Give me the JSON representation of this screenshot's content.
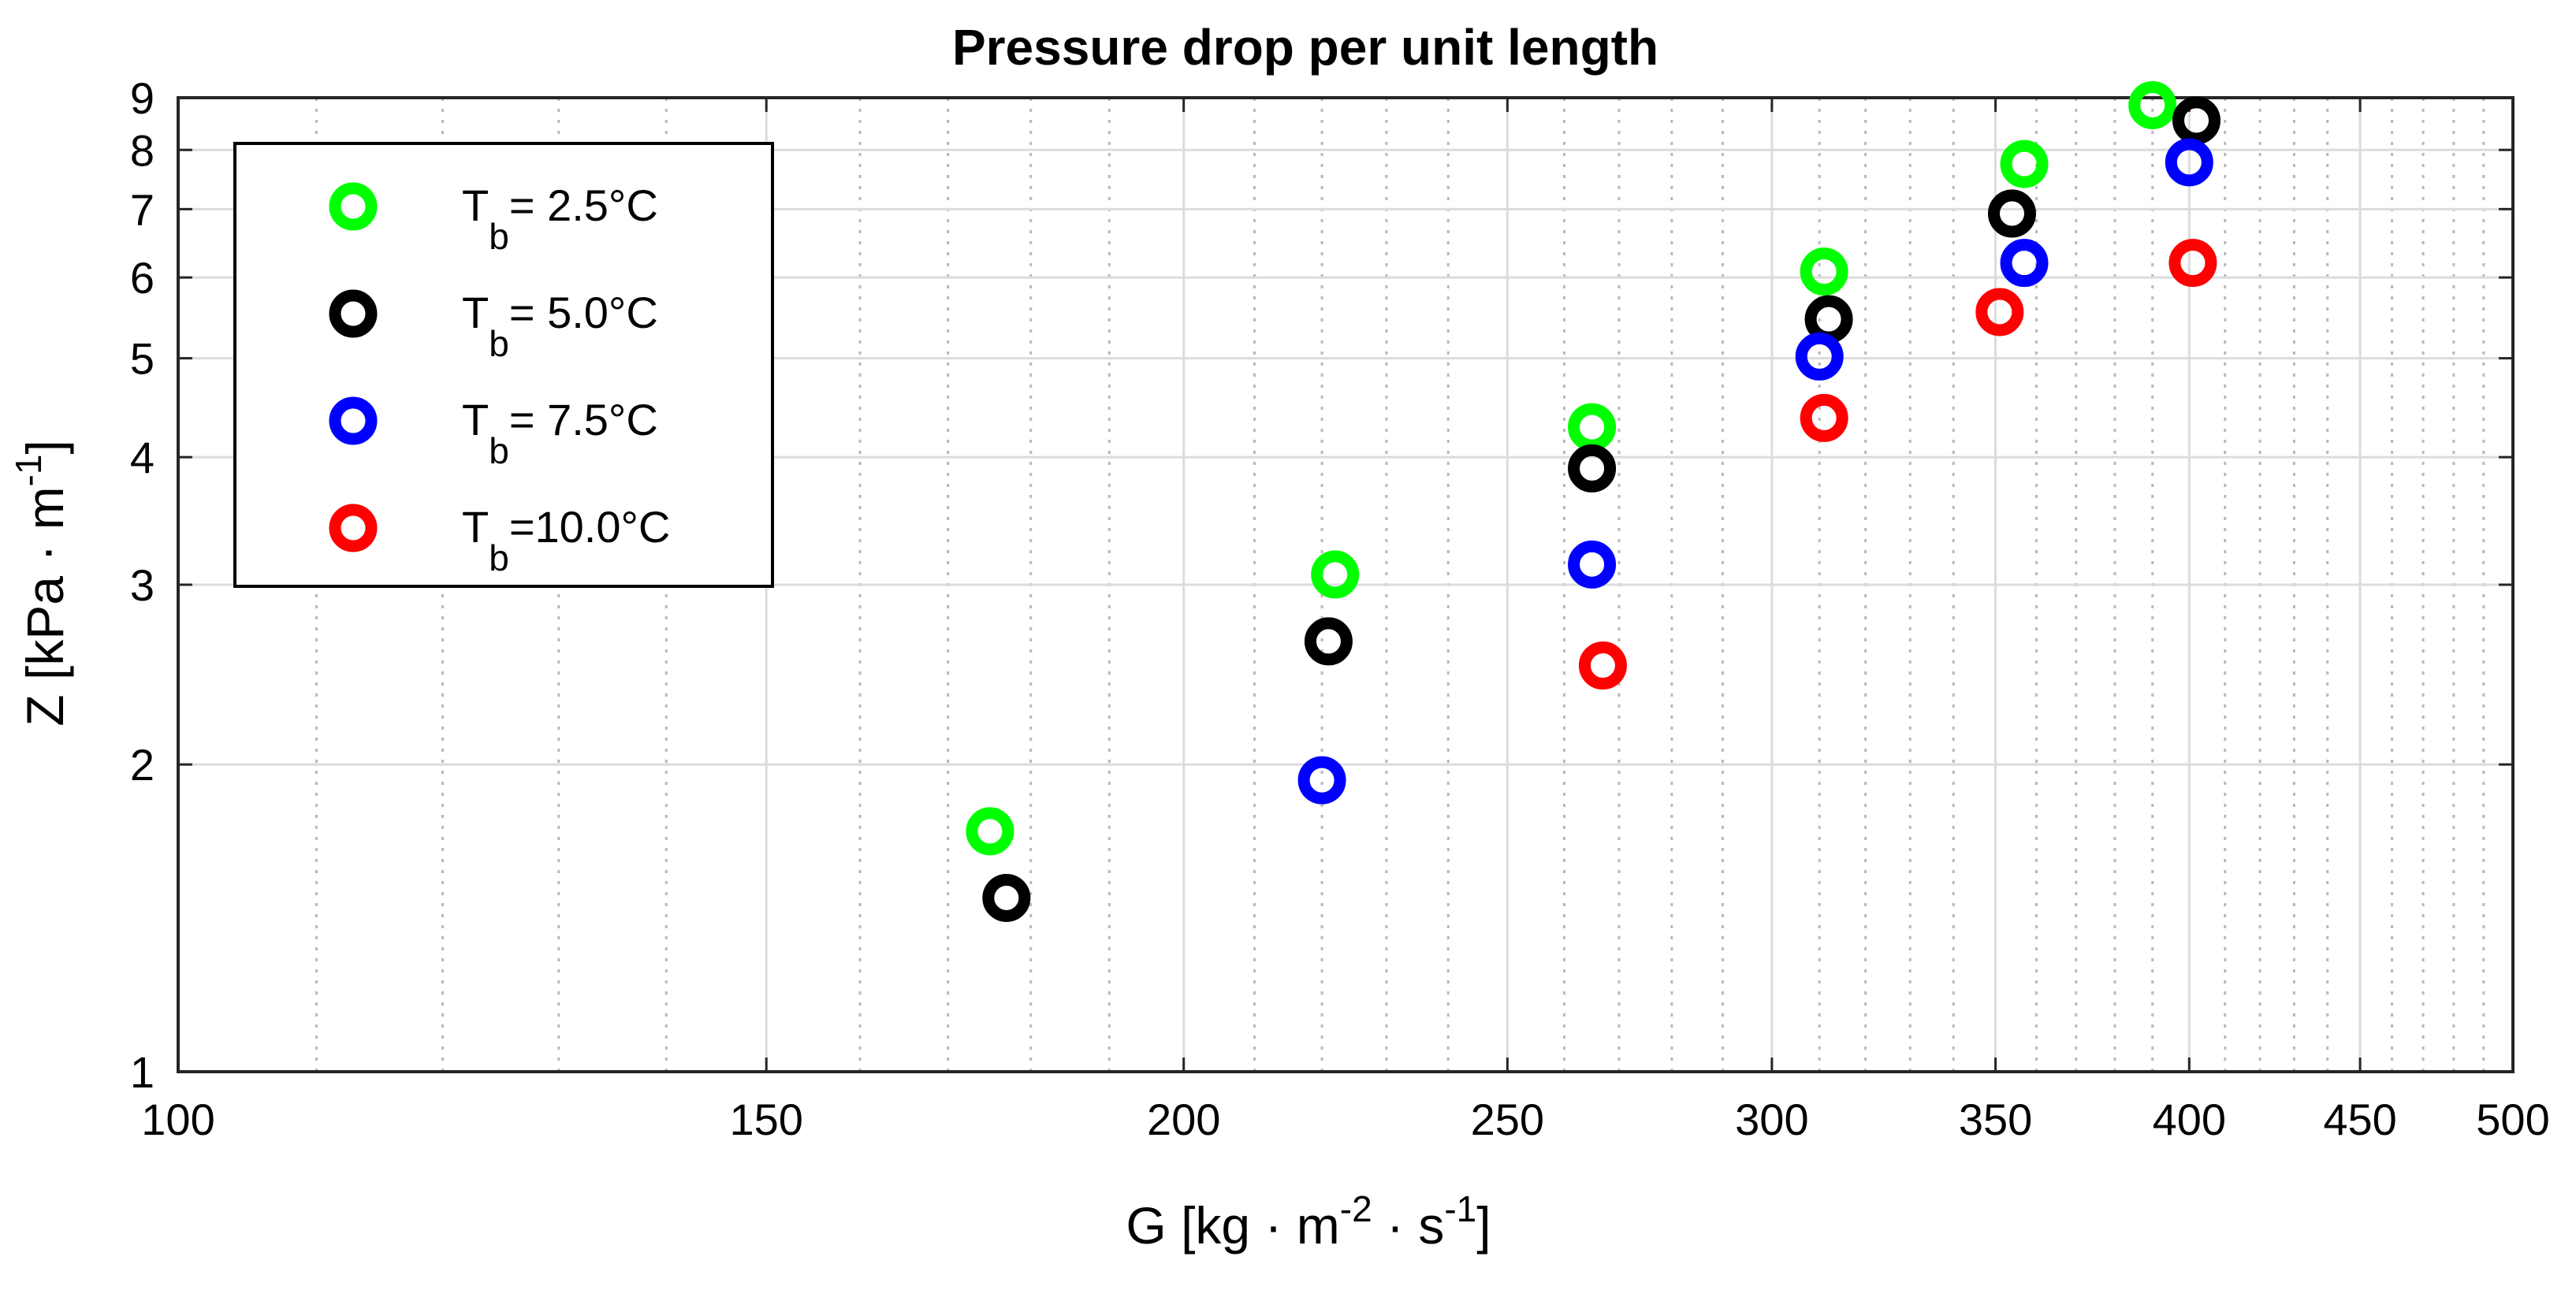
{
  "chart_data": {
    "type": "scatter",
    "title": "Pressure drop per unit length",
    "xlabel": {
      "base": "G [kg · m",
      "sup1": "-2",
      "mid": " · s",
      "sup2": "-1",
      "end": "]"
    },
    "ylabel": {
      "base": "Z [kPa · m",
      "sup": "-1",
      "end": "]"
    },
    "xscale": "log",
    "yscale": "log",
    "xlim": [
      100,
      500
    ],
    "ylim": [
      1,
      9
    ],
    "xticks": [
      100,
      150,
      200,
      250,
      300,
      350,
      400,
      450,
      500
    ],
    "yticks": [
      1,
      2,
      3,
      4,
      5,
      6,
      7,
      8,
      9
    ],
    "grid": true,
    "legend_position": "top-left",
    "series": [
      {
        "name": "Tb= 2.5°C",
        "label_main": "T",
        "label_sub": "b",
        "label_rest": "= 2.5°C",
        "color": "#00ff00",
        "x": [
          175,
          222,
          265,
          311,
          357,
          390
        ],
        "y": [
          1.72,
          3.07,
          4.28,
          6.08,
          7.75,
          8.85
        ]
      },
      {
        "name": "Tb= 5.0°C",
        "label_main": "T",
        "label_sub": "b",
        "label_rest": "= 5.0°C",
        "color": "#000000",
        "x": [
          177,
          221,
          265,
          312,
          354,
          402
        ],
        "y": [
          1.48,
          2.64,
          3.9,
          5.46,
          6.93,
          8.55
        ]
      },
      {
        "name": "Tb= 7.5°C",
        "label_main": "T",
        "label_sub": "b",
        "label_rest": "= 7.5°C",
        "color": "#0000ff",
        "x": [
          220,
          265,
          310,
          357,
          400
        ],
        "y": [
          1.93,
          3.14,
          5.02,
          6.2,
          7.78
        ]
      },
      {
        "name": "Tb=10.0°C",
        "label_main": "T",
        "label_sub": "b",
        "label_rest": "=10.0°C",
        "color": "#ff0000",
        "x": [
          267,
          311,
          351,
          401
        ],
        "y": [
          2.5,
          4.37,
          5.55,
          6.2
        ]
      }
    ]
  }
}
